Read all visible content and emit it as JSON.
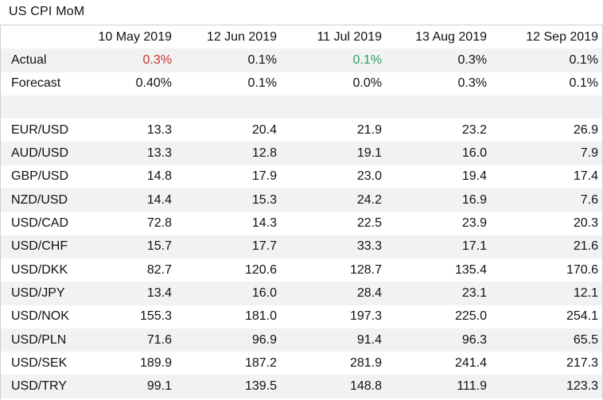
{
  "title": "US CPI MoM",
  "headers": [
    "",
    "10 May 2019",
    "12 Jun 2019",
    "11 Jul 2019",
    "13 Aug 2019",
    "12 Sep 2019"
  ],
  "actual": {
    "label": "Actual",
    "values": [
      "0.3%",
      "0.1%",
      "0.1%",
      "0.3%",
      "0.1%"
    ]
  },
  "forecast": {
    "label": "Forecast",
    "values": [
      "0.40%",
      "0.1%",
      "0.0%",
      "0.3%",
      "0.1%"
    ]
  },
  "colors": {
    "actual_above": "#c0392b",
    "actual_below": "#2e9e6b",
    "row_shade": "#f2f2f2"
  },
  "rows": [
    {
      "label": "EUR/USD",
      "values": [
        "13.3",
        "20.4",
        "21.9",
        "23.2",
        "26.9"
      ]
    },
    {
      "label": "AUD/USD",
      "values": [
        "13.3",
        "12.8",
        "19.1",
        "16.0",
        "7.9"
      ]
    },
    {
      "label": "GBP/USD",
      "values": [
        "14.8",
        "17.9",
        "23.0",
        "19.4",
        "17.4"
      ]
    },
    {
      "label": "NZD/USD",
      "values": [
        "14.4",
        "15.3",
        "24.2",
        "16.9",
        "7.6"
      ]
    },
    {
      "label": "USD/CAD",
      "values": [
        "72.8",
        "14.3",
        "22.5",
        "23.9",
        "20.3"
      ]
    },
    {
      "label": "USD/CHF",
      "values": [
        "15.7",
        "17.7",
        "33.3",
        "17.1",
        "21.6"
      ]
    },
    {
      "label": "USD/DKK",
      "values": [
        "82.7",
        "120.6",
        "128.7",
        "135.4",
        "170.6"
      ]
    },
    {
      "label": "USD/JPY",
      "values": [
        "13.4",
        "16.0",
        "28.4",
        "23.1",
        "12.1"
      ]
    },
    {
      "label": "USD/NOK",
      "values": [
        "155.3",
        "181.0",
        "197.3",
        "225.0",
        "254.1"
      ]
    },
    {
      "label": "USD/PLN",
      "values": [
        "71.6",
        "96.9",
        "91.4",
        "96.3",
        "65.5"
      ]
    },
    {
      "label": "USD/SEK",
      "values": [
        "189.9",
        "187.2",
        "281.9",
        "241.4",
        "217.3"
      ]
    },
    {
      "label": "USD/TRY",
      "values": [
        "99.1",
        "139.5",
        "148.8",
        "111.9",
        "123.3"
      ]
    }
  ]
}
